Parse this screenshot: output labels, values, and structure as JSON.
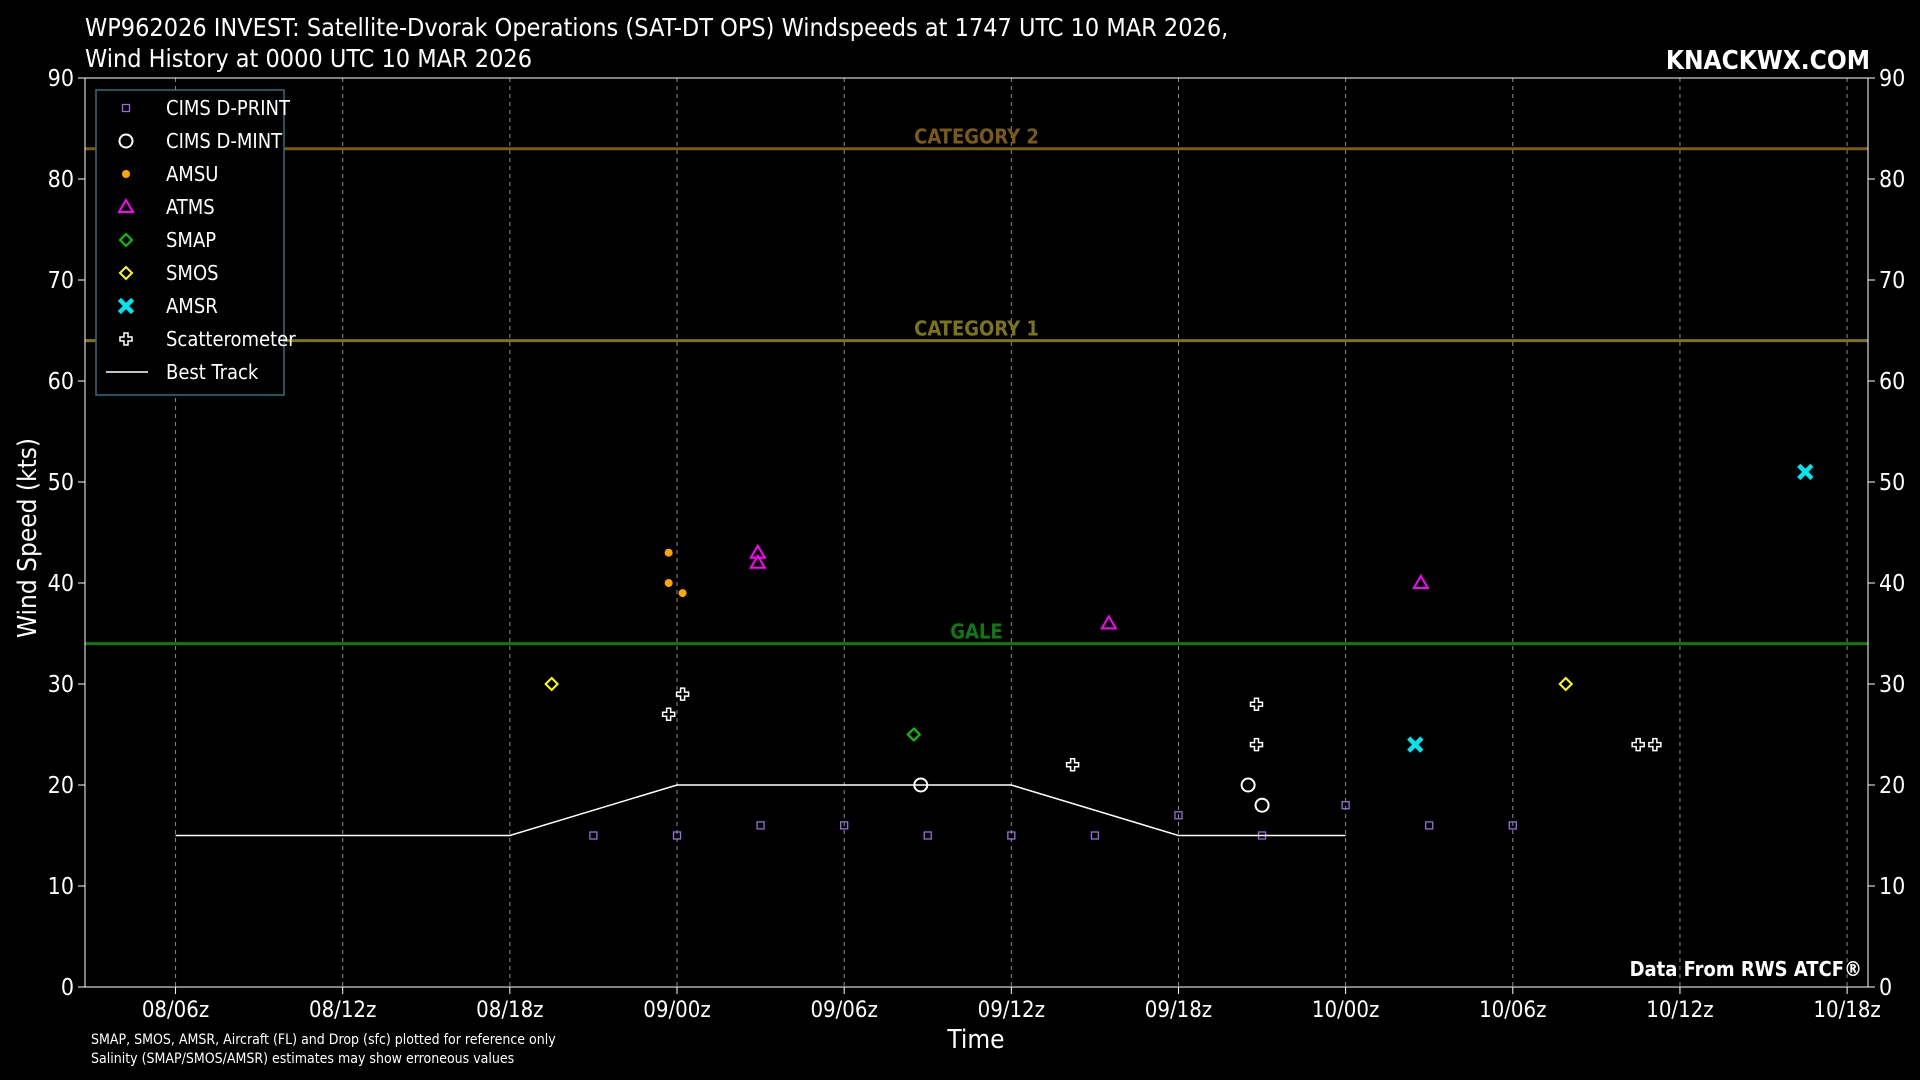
{
  "chart_data": {
    "type": "scatter",
    "title_line1": "WP962026 INVEST: Satellite-Dvorak Operations (SAT-DT OPS) Windspeeds at 1747 UTC 10 MAR 2026,",
    "title_line2": "Wind History at 0000 UTC 10 MAR 2026",
    "brand": "KNACKWX.COM",
    "xlabel": "Time",
    "ylabel": "Wind Speed (kts)",
    "source": "Data From RWS ATCF®",
    "footnote_line1": "SMAP, SMOS, AMSR, Aircraft (FL) and Drop (sfc) plotted for reference only",
    "footnote_line2": "Salinity (SMAP/SMOS/AMSR) estimates may show erroneous values",
    "x_unit": "hours since 08/00z",
    "xlim": [
      2.75,
      66.75
    ],
    "ylim": [
      0,
      90
    ],
    "grid": true,
    "legend_position": "top-left",
    "x_ticks": [
      {
        "x": 6,
        "label": "08/06z"
      },
      {
        "x": 12,
        "label": "08/12z"
      },
      {
        "x": 18,
        "label": "08/18z"
      },
      {
        "x": 24,
        "label": "09/00z"
      },
      {
        "x": 30,
        "label": "09/06z"
      },
      {
        "x": 36,
        "label": "09/12z"
      },
      {
        "x": 42,
        "label": "09/18z"
      },
      {
        "x": 48,
        "label": "10/00z"
      },
      {
        "x": 54,
        "label": "10/06z"
      },
      {
        "x": 60,
        "label": "10/12z"
      },
      {
        "x": 66,
        "label": "10/18z"
      }
    ],
    "y_ticks": [
      0,
      10,
      20,
      30,
      40,
      50,
      60,
      70,
      80,
      90
    ],
    "thresholds": [
      {
        "name": "CATEGORY 2",
        "value": 83,
        "color": "#7a5a14"
      },
      {
        "name": "CATEGORY 1",
        "value": 64,
        "color": "#7d7514"
      },
      {
        "name": "GALE",
        "value": 34,
        "color": "#0e7a0e"
      }
    ],
    "series": [
      {
        "name": "CIMS D-PRINT",
        "marker": "square",
        "color": "#9370db",
        "points": [
          [
            21,
            15
          ],
          [
            24,
            15
          ],
          [
            27,
            16
          ],
          [
            30,
            16
          ],
          [
            33,
            15
          ],
          [
            36,
            15
          ],
          [
            39,
            15
          ],
          [
            42,
            17
          ],
          [
            45,
            15
          ],
          [
            48,
            18
          ],
          [
            51,
            16
          ],
          [
            54,
            16
          ]
        ]
      },
      {
        "name": "CIMS D-MINT",
        "marker": "circle-open",
        "color": "#ffffff",
        "points": [
          [
            32.75,
            20
          ],
          [
            44.5,
            20
          ],
          [
            45,
            18
          ]
        ]
      },
      {
        "name": "AMSU",
        "marker": "dot",
        "color": "#ffa500",
        "points": [
          [
            23.7,
            43
          ],
          [
            23.7,
            40
          ],
          [
            24.2,
            39
          ]
        ]
      },
      {
        "name": "ATMS",
        "marker": "triangle",
        "color": "#ff00ff",
        "points": [
          [
            26.9,
            43
          ],
          [
            26.9,
            42
          ],
          [
            39.5,
            36
          ],
          [
            50.7,
            40
          ]
        ]
      },
      {
        "name": "SMAP",
        "marker": "diamond",
        "color": "#00cc00",
        "points": [
          [
            32.5,
            25
          ]
        ]
      },
      {
        "name": "SMOS",
        "marker": "diamond",
        "color": "#ffff00",
        "points": [
          [
            19.5,
            30
          ],
          [
            55.9,
            30
          ]
        ]
      },
      {
        "name": "AMSR",
        "marker": "x",
        "color": "#00e5ee",
        "points": [
          [
            50.5,
            24
          ],
          [
            64.5,
            51
          ]
        ]
      },
      {
        "name": "Scatterometer",
        "marker": "plus",
        "color": "#ffffff",
        "points": [
          [
            23.7,
            27
          ],
          [
            24.2,
            29
          ],
          [
            38.2,
            22
          ],
          [
            44.8,
            28
          ],
          [
            44.8,
            24
          ],
          [
            58.5,
            24
          ],
          [
            59.1,
            24
          ]
        ]
      },
      {
        "name": "Best Track",
        "marker": "line",
        "color": "#ffffff",
        "points": [
          [
            6,
            15
          ],
          [
            12,
            15
          ],
          [
            18,
            15
          ],
          [
            24,
            20
          ],
          [
            30,
            20
          ],
          [
            36,
            20
          ],
          [
            42,
            15
          ],
          [
            48,
            15
          ]
        ]
      }
    ]
  }
}
